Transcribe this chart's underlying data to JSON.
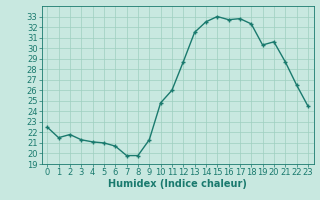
{
  "x": [
    0,
    1,
    2,
    3,
    4,
    5,
    6,
    7,
    8,
    9,
    10,
    11,
    12,
    13,
    14,
    15,
    16,
    17,
    18,
    19,
    20,
    21,
    22,
    23
  ],
  "y": [
    22.5,
    21.5,
    21.8,
    21.3,
    21.1,
    21.0,
    20.7,
    19.8,
    19.8,
    21.3,
    24.8,
    26.0,
    28.7,
    31.5,
    32.5,
    33.0,
    32.7,
    32.8,
    32.3,
    30.3,
    30.6,
    28.7,
    26.5,
    24.5
  ],
  "line_color": "#1a7a6e",
  "marker": "+",
  "marker_color": "#1a7a6e",
  "bg_color": "#c8e8e0",
  "grid_color": "#9ecfbf",
  "xlabel": "Humidex (Indice chaleur)",
  "xlim": [
    -0.5,
    23.5
  ],
  "ylim": [
    19,
    34
  ],
  "yticks": [
    19,
    20,
    21,
    22,
    23,
    24,
    25,
    26,
    27,
    28,
    29,
    30,
    31,
    32,
    33
  ],
  "xticks": [
    0,
    1,
    2,
    3,
    4,
    5,
    6,
    7,
    8,
    9,
    10,
    11,
    12,
    13,
    14,
    15,
    16,
    17,
    18,
    19,
    20,
    21,
    22,
    23
  ],
  "xlabel_fontsize": 7,
  "tick_fontsize": 6,
  "line_width": 1.0,
  "marker_size": 3.5
}
